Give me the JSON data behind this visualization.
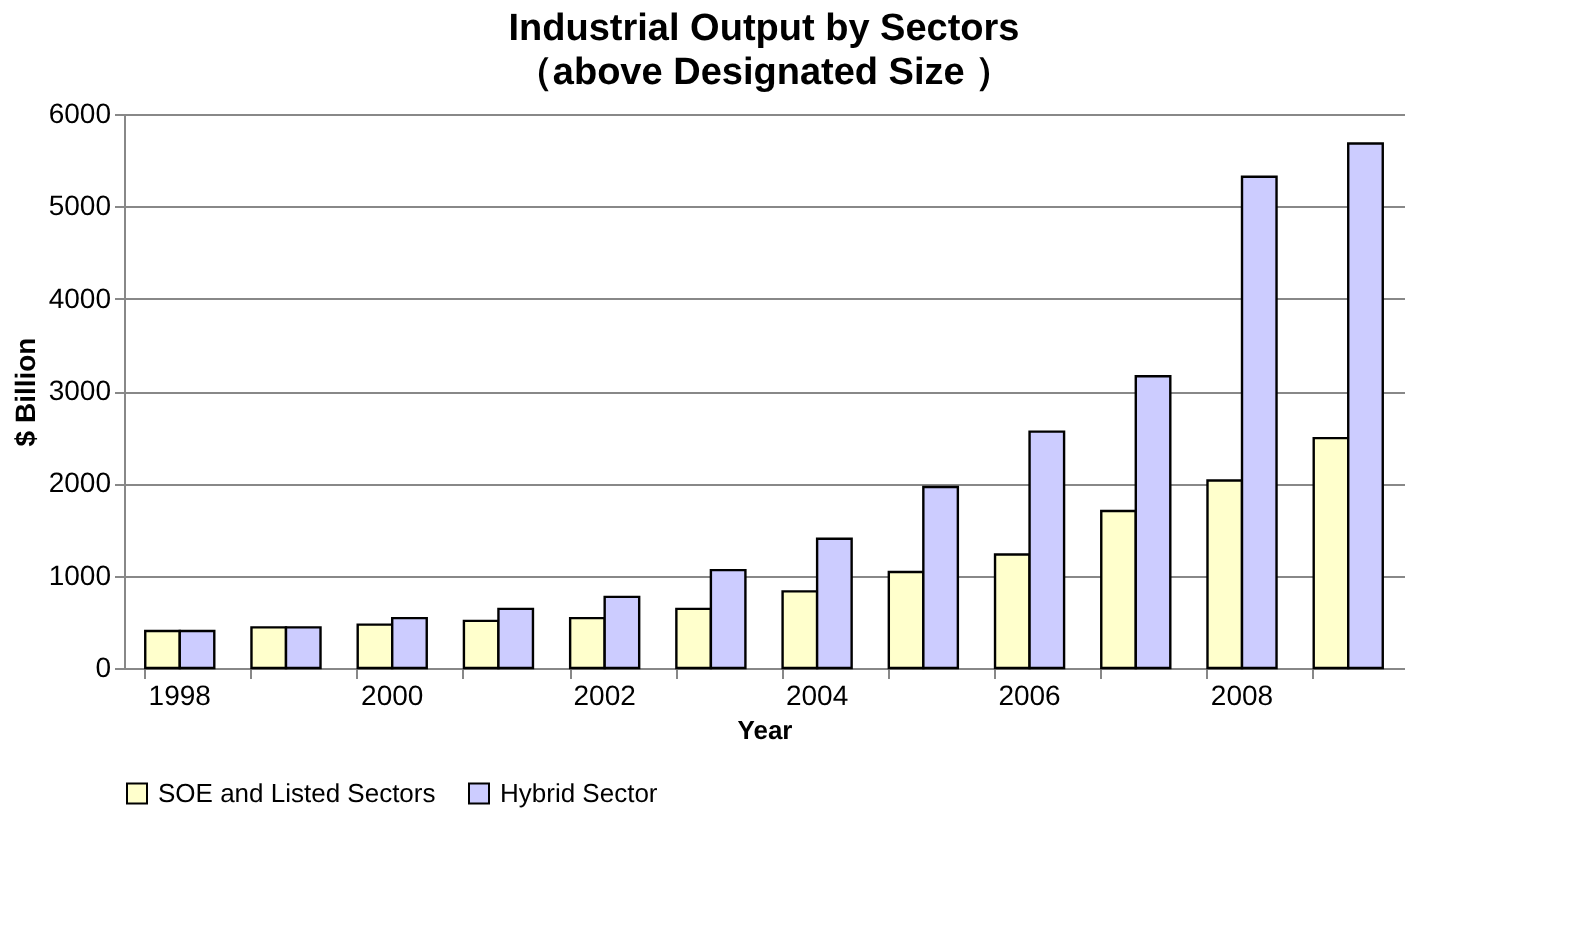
{
  "chart_data": {
    "type": "bar",
    "title": "Industrial Output by Sectors",
    "subtitle": "（above Designated Size ）",
    "xlabel": "Year",
    "ylabel": "$ Billion",
    "categories": [
      "1998",
      null,
      "2000",
      null,
      "2002",
      null,
      "2004",
      null,
      "2006",
      null,
      "2008",
      null
    ],
    "series": [
      {
        "name": "SOE and  Listed Sectors",
        "color": "#ffffcc",
        "values": [
          400,
          440,
          470,
          510,
          540,
          640,
          830,
          1040,
          1230,
          1700,
          2030,
          2490
        ]
      },
      {
        "name": "Hybrid Sector",
        "color": "#ccccff",
        "values": [
          400,
          440,
          540,
          640,
          770,
          1060,
          1400,
          1960,
          2560,
          3160,
          5320,
          5680
        ]
      }
    ],
    "ylim": [
      0,
      6000
    ],
    "yticks": [
      0,
      1000,
      2000,
      3000,
      4000,
      5000,
      6000
    ],
    "grid": "y",
    "legend": "bottom"
  }
}
